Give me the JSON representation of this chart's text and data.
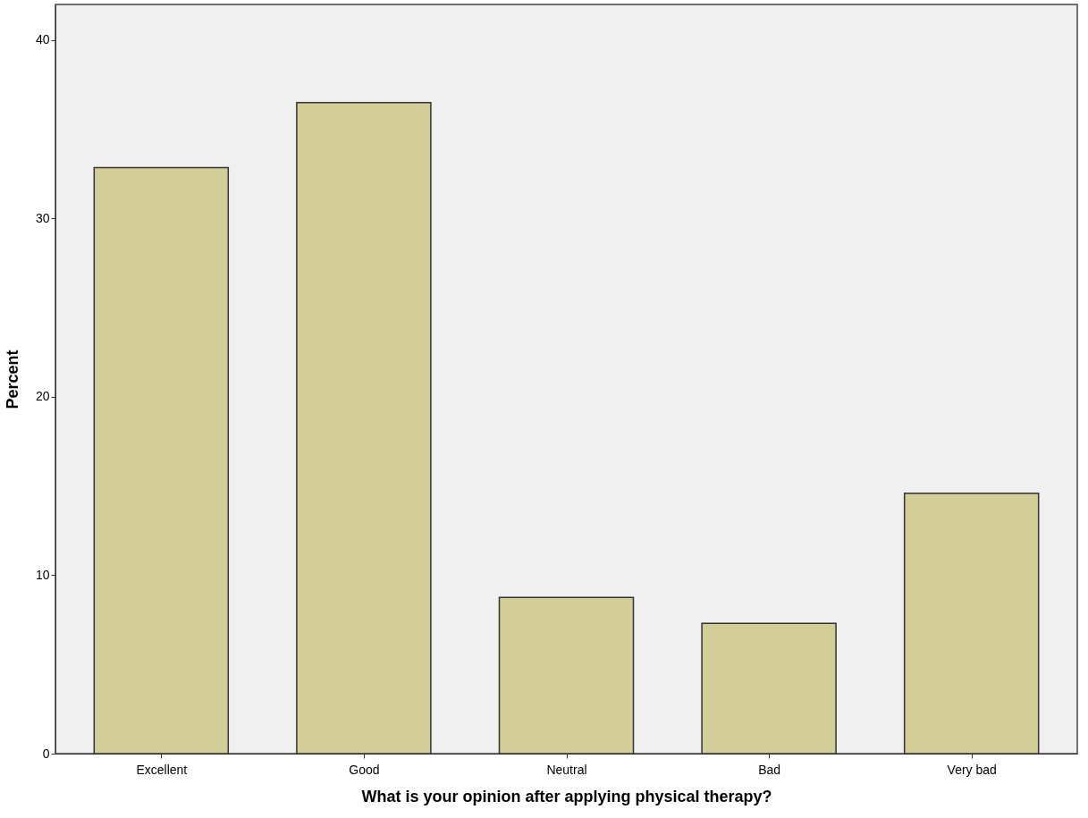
{
  "chart_data": {
    "type": "bar",
    "categories": [
      "Excellent",
      "Good",
      "Neutral",
      "Bad",
      "Very bad"
    ],
    "values": [
      32.85,
      36.5,
      8.76,
      7.3,
      14.6
    ],
    "color": "#d3ce97",
    "xlabel": "What is your opinion after applying physical therapy?",
    "ylabel": "Percent",
    "ylim": [
      0,
      42
    ],
    "yticks": [
      0,
      10,
      20,
      30,
      40
    ],
    "grid": false
  }
}
